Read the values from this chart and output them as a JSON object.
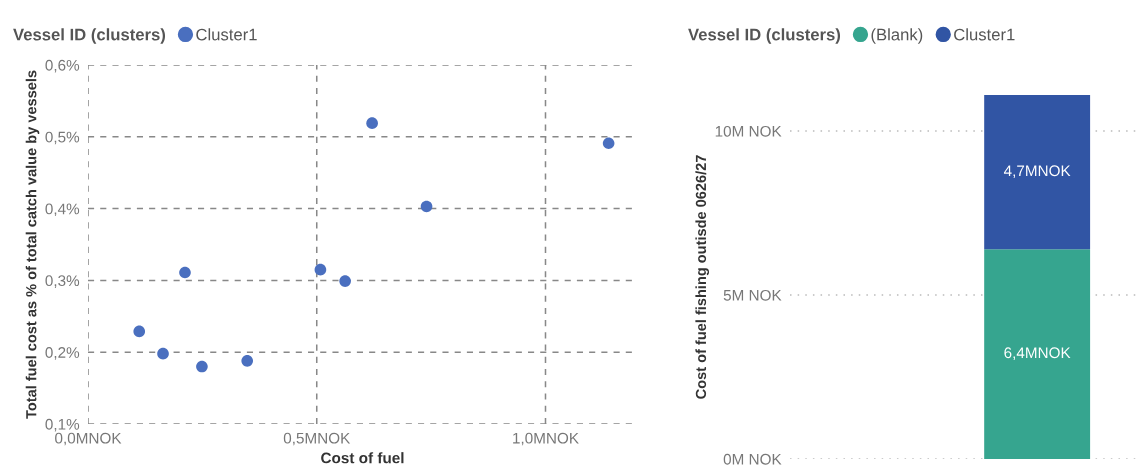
{
  "chart_data": [
    {
      "type": "scatter",
      "xlabel": "Cost of fuel",
      "ylabel": "Total fuel cost as % of total catch value by vessels",
      "legend_title": "Vessel ID (clusters)",
      "legend": "top left",
      "grid": true,
      "line_style": "dashed",
      "marker": "circle",
      "series": [
        {
          "name": "Cluster1",
          "color": "#4a6fbf",
          "x": [
            0.112,
            0.164,
            0.212,
            0.249,
            0.348,
            0.508,
            0.562,
            0.621,
            0.74,
            1.138
          ],
          "values": [
            0.229,
            0.198,
            0.311,
            0.18,
            0.188,
            0.315,
            0.299,
            0.519,
            0.403,
            0.491
          ]
        }
      ],
      "xlim": [
        0,
        1.2
      ],
      "xticks": [
        {
          "value": 0,
          "label": "0,0MNOK"
        },
        {
          "value": 0.5,
          "label": "0,5MNOK"
        },
        {
          "value": 1.0,
          "label": "1,0MNOK"
        }
      ],
      "ylim": [
        0.1,
        0.6
      ],
      "yticks": [
        {
          "value": 0.1,
          "label": "0,1%"
        },
        {
          "value": 0.2,
          "label": "0,2%"
        },
        {
          "value": 0.3,
          "label": "0,3%"
        },
        {
          "value": 0.4,
          "label": "0,4%"
        },
        {
          "value": 0.5,
          "label": "0,5%"
        },
        {
          "value": 0.6,
          "label": "0,6%"
        }
      ]
    },
    {
      "type": "bar",
      "stacked": true,
      "ylabel": "Cost of fuel fishing outisde 0626/27",
      "legend_title": "Vessel ID (clusters)",
      "legend": "top left",
      "grid": "y",
      "line_style": "dotted",
      "tick_labels": "y",
      "categories": [
        null
      ],
      "series": [
        {
          "name": "(Blank)",
          "color": "#36a58f",
          "values": [
            6.4
          ],
          "value_labels": [
            "6,4MNOK"
          ]
        },
        {
          "name": "Cluster1",
          "color": "#3155a4",
          "values": [
            4.7
          ],
          "value_labels": [
            "4,7MNOK"
          ]
        }
      ],
      "ylim": [
        0,
        11.1
      ],
      "yticks": [
        {
          "value": 0,
          "label": "0M NOK"
        },
        {
          "value": 5,
          "label": "5M NOK"
        },
        {
          "value": 10,
          "label": "10M NOK"
        }
      ]
    }
  ]
}
